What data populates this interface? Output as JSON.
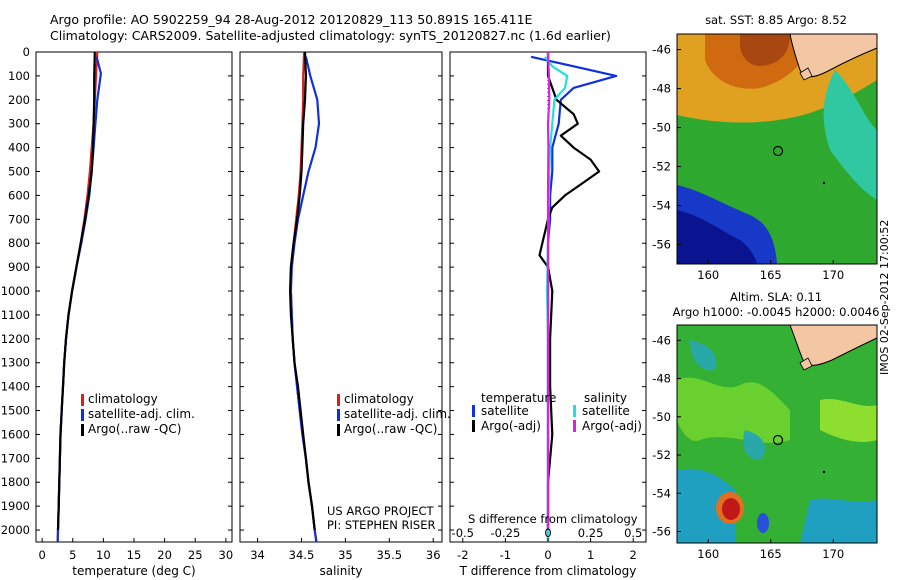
{
  "header": {
    "line1": "Argo profile: AO 5902259_94 28-Aug-2012 20120829_113 50.891S 165.411E",
    "line2": "Climatology: CARS2009. Satellite-adjusted climatology: synTS_20120827.nc (1.6d earlier)"
  },
  "depth_ticks": [
    "0",
    "100",
    "200",
    "300",
    "400",
    "500",
    "600",
    "700",
    "800",
    "900",
    "1000",
    "1100",
    "1200",
    "1300",
    "1400",
    "1500",
    "1600",
    "1700",
    "1800",
    "1900",
    "2000"
  ],
  "colors": {
    "climatology": "#d81e1e",
    "satellite": "#1030e0",
    "argo": "#000000",
    "sal_satellite": "#20e0e0",
    "sal_argo": "#e020e0"
  },
  "panels": {
    "temperature": {
      "xlabel": "temperature (deg C)",
      "xticks": [
        "0",
        "5",
        "10",
        "15",
        "20",
        "25",
        "30"
      ],
      "legend": [
        "climatology",
        "satellite-adj. clim.",
        "Argo(..raw -QC)"
      ]
    },
    "salinity": {
      "xlabel": "salinity",
      "xticks": [
        "34",
        "34.5",
        "35",
        "35.5",
        "36"
      ],
      "legend": [
        "climatology",
        "satellite-adj. clim.",
        "Argo(..raw -QC)"
      ],
      "note1": "US ARGO PROJECT",
      "note2": "PI: STEPHEN RISER"
    },
    "difference": {
      "xlabel": "T difference from climatology",
      "xticks": [
        "-2",
        "-1",
        "0",
        "1",
        "2"
      ],
      "s_label": "S difference from climatology",
      "s_ticks": [
        "-0.5",
        "-0.25",
        "0",
        "0.25",
        "0.5"
      ],
      "legend_temp_title": "temperature",
      "legend_sal_title": "salinity",
      "legend_sat": "satellite",
      "legend_argo": "Argo(-adj)"
    }
  },
  "maps": {
    "sst": {
      "title": "sat. SST: 8.85 Argo: 8.52",
      "yticks": [
        "-46",
        "-48",
        "-50",
        "-52",
        "-54",
        "-56"
      ],
      "xticks": [
        "160",
        "165",
        "170"
      ]
    },
    "sla": {
      "title1": "Altim. SLA: 0.11",
      "title2": "Argo h1000: -0.0045 h2000: 0.0046",
      "yticks": [
        "-46",
        "-48",
        "-50",
        "-52",
        "-54",
        "-56"
      ],
      "xticks": [
        "160",
        "165",
        "170"
      ]
    },
    "float_position": {
      "lat": -50.891,
      "lon": 165.411
    }
  },
  "side_stamp": "IMOS 02-Sep-2012 17:00:52",
  "chart_data": [
    {
      "type": "line",
      "title": "",
      "xlabel": "temperature (deg C)",
      "ylabel": "",
      "xlim": [
        -1,
        31
      ],
      "ylim": [
        2050,
        0
      ],
      "series": [
        {
          "name": "climatology",
          "x": [
            9.0,
            8.8,
            8.6,
            8.4,
            8.1,
            7.8,
            7.4,
            6.9,
            6.3,
            5.6,
            4.9,
            4.3,
            3.9,
            3.6,
            3.4,
            3.2,
            3.0,
            2.9,
            2.8,
            2.7,
            2.6,
            2.55
          ],
          "y": [
            0,
            100,
            200,
            300,
            400,
            500,
            600,
            700,
            800,
            900,
            1000,
            1100,
            1200,
            1300,
            1400,
            1500,
            1600,
            1700,
            1800,
            1900,
            2000,
            2050
          ]
        },
        {
          "name": "satellite-adj. clim.",
          "x": [
            8.9,
            9.6,
            9.0,
            8.7,
            8.4,
            8.1,
            7.7,
            7.1,
            6.4,
            5.6,
            4.9,
            4.3,
            3.9,
            3.6,
            3.4,
            3.2,
            3.0,
            2.9,
            2.8,
            2.7,
            2.6,
            2.55
          ],
          "y": [
            20,
            90,
            200,
            300,
            400,
            500,
            600,
            700,
            800,
            900,
            1000,
            1100,
            1200,
            1300,
            1400,
            1500,
            1600,
            1700,
            1800,
            1900,
            2000,
            2050
          ]
        },
        {
          "name": "Argo(..raw -QC)",
          "x": [
            8.6,
            8.5,
            8.5,
            8.4,
            8.3,
            8.1,
            7.6,
            7.0,
            6.3,
            5.6,
            4.9,
            4.3,
            3.9,
            3.6,
            3.4,
            3.2,
            3.0,
            2.9,
            2.8,
            2.7,
            2.6
          ],
          "y": [
            0,
            100,
            200,
            300,
            400,
            500,
            600,
            700,
            800,
            900,
            1000,
            1100,
            1200,
            1300,
            1400,
            1500,
            1600,
            1700,
            1800,
            1900,
            2000
          ]
        }
      ]
    },
    {
      "type": "line",
      "title": "",
      "xlabel": "salinity",
      "ylabel": "",
      "xlim": [
        33.8,
        36.1
      ],
      "ylim": [
        2050,
        0
      ],
      "series": [
        {
          "name": "climatology",
          "x": [
            34.53,
            34.52,
            34.52,
            34.51,
            34.5,
            34.49,
            34.47,
            34.44,
            34.41,
            34.38,
            34.38,
            34.39,
            34.4,
            34.42,
            34.45,
            34.48,
            34.51,
            34.55,
            34.58,
            34.62,
            34.65,
            34.67
          ],
          "y": [
            0,
            100,
            200,
            300,
            400,
            500,
            600,
            700,
            800,
            900,
            1000,
            1100,
            1200,
            1300,
            1400,
            1500,
            1600,
            1700,
            1800,
            1900,
            2000,
            2050
          ]
        },
        {
          "name": "satellite-adj. clim.",
          "x": [
            34.55,
            34.6,
            34.68,
            34.7,
            34.66,
            34.58,
            34.52,
            34.46,
            34.42,
            34.39,
            34.38,
            34.39,
            34.4,
            34.42,
            34.45,
            34.48,
            34.51,
            34.55,
            34.58,
            34.62,
            34.65,
            34.67
          ],
          "y": [
            20,
            100,
            200,
            300,
            400,
            500,
            600,
            700,
            800,
            900,
            1000,
            1100,
            1200,
            1300,
            1400,
            1500,
            1600,
            1700,
            1800,
            1900,
            2000,
            2050
          ]
        },
        {
          "name": "Argo(..raw -QC)",
          "x": [
            34.54,
            34.55,
            34.54,
            34.52,
            34.51,
            34.5,
            34.48,
            34.45,
            34.41,
            34.38,
            34.37,
            34.38,
            34.4,
            34.42,
            34.46,
            34.49,
            34.52,
            34.55,
            34.58,
            34.62,
            34.65
          ],
          "y": [
            0,
            100,
            200,
            300,
            400,
            500,
            600,
            700,
            800,
            900,
            1000,
            1100,
            1200,
            1300,
            1400,
            1500,
            1600,
            1700,
            1800,
            1900,
            2000
          ]
        }
      ]
    },
    {
      "type": "line",
      "title": "",
      "xlabel": "T difference from climatology",
      "ylabel": "",
      "xlim": [
        -2.3,
        2.3
      ],
      "ylim": [
        2050,
        0
      ],
      "series": [
        {
          "name": "temperature satellite",
          "x": [
            -0.4,
            0.6,
            1.6,
            0.6,
            0.3,
            0.25,
            0.1,
            0.1,
            0.05,
            0.05,
            0.0,
            0.0,
            0.0,
            0.0,
            0.0,
            0.0,
            0.0,
            0.0,
            0.0,
            0.0
          ],
          "y": [
            20,
            60,
            100,
            150,
            200,
            300,
            400,
            500,
            600,
            700,
            800,
            900,
            1000,
            1200,
            1400,
            1600,
            1800,
            1900,
            2000,
            2050
          ]
        },
        {
          "name": "temperature Argo(-adj)",
          "x": [
            0.0,
            0.0,
            0.2,
            0.6,
            0.7,
            0.3,
            0.6,
            1.0,
            1.2,
            0.8,
            0.4,
            0.1,
            0.0,
            -0.2,
            0.0,
            0.1,
            0.05,
            0.05,
            0.1,
            0.0,
            0.0
          ],
          "y": [
            0,
            100,
            200,
            260,
            300,
            350,
            400,
            450,
            500,
            550,
            600,
            650,
            700,
            850,
            900,
            1000,
            1200,
            1400,
            1600,
            1800,
            2000
          ]
        },
        {
          "name": "salinity satellite",
          "x": [
            -0.07,
            0.1,
            0.45,
            0.4,
            0.15,
            0.1,
            0.05,
            0.03,
            0.02,
            0.0,
            -0.02,
            0.0,
            0.0,
            0.0,
            0.0,
            0.0,
            0.0
          ],
          "y": [
            20,
            60,
            100,
            150,
            200,
            300,
            400,
            500,
            600,
            800,
            1000,
            1200,
            1400,
            1600,
            1800,
            2000,
            2050
          ]
        },
        {
          "name": "salinity Argo(-adj)",
          "x": [
            0.0,
            0.02,
            0.03,
            0.0,
            0.01,
            0.0,
            0.0,
            0.0,
            0.0,
            0.0,
            0.0,
            0.0,
            0.0
          ],
          "y": [
            0,
            100,
            200,
            300,
            400,
            600,
            800,
            1000,
            1200,
            1400,
            1600,
            1800,
            2000
          ]
        }
      ]
    }
  ]
}
